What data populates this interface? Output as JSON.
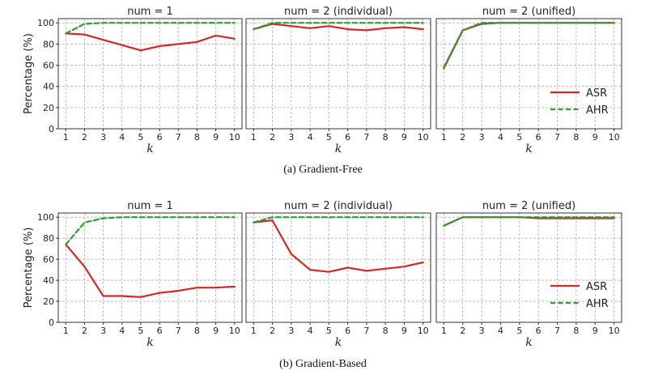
{
  "colors": {
    "asr": "#d62728",
    "ahr": "#2ca02c",
    "grid": "#b0b0b0",
    "frame": "#333333"
  },
  "legend": {
    "placement": "lower-right",
    "in_panel": 2
  },
  "chart_data": [
    {
      "caption": "(a) Gradient-Free",
      "type": "line",
      "ylabel": "Percentage (%)",
      "panels": [
        {
          "title": "num = 1",
          "xlabel": "k",
          "x": [
            1,
            2,
            3,
            4,
            5,
            6,
            7,
            8,
            9,
            10
          ],
          "series": [
            {
              "name": "ASR",
              "style": "solid",
              "values": [
                90,
                89,
                84,
                79,
                74,
                78,
                80,
                82,
                88,
                85
              ]
            },
            {
              "name": "AHR",
              "style": "dashed",
              "values": [
                90,
                99,
                100,
                100,
                100,
                100,
                100,
                100,
                100,
                100
              ]
            }
          ]
        },
        {
          "title": "num = 2 (individual)",
          "xlabel": "k",
          "x": [
            1,
            2,
            3,
            4,
            5,
            6,
            7,
            8,
            9,
            10
          ],
          "series": [
            {
              "name": "ASR",
              "style": "solid",
              "values": [
                94,
                99,
                97,
                95,
                97,
                94,
                93,
                95,
                96,
                94
              ]
            },
            {
              "name": "AHR",
              "style": "dashed",
              "values": [
                94,
                100,
                100,
                100,
                100,
                100,
                100,
                100,
                100,
                100
              ]
            }
          ]
        },
        {
          "title": "num = 2 (unified)",
          "xlabel": "k",
          "x": [
            1,
            2,
            3,
            4,
            5,
            6,
            7,
            8,
            9,
            10
          ],
          "series": [
            {
              "name": "ASR",
              "style": "solid",
              "values": [
                57,
                93,
                99,
                100,
                100,
                100,
                100,
                100,
                100,
                100
              ]
            },
            {
              "name": "AHR",
              "style": "dashed",
              "values": [
                58,
                93,
                100,
                100,
                100,
                100,
                100,
                100,
                100,
                100
              ]
            }
          ]
        }
      ],
      "ylim": [
        0,
        104
      ],
      "yticks": [
        0,
        20,
        40,
        60,
        80,
        100
      ],
      "grid": true
    },
    {
      "caption": "(b) Gradient-Based",
      "type": "line",
      "ylabel": "Percentage (%)",
      "panels": [
        {
          "title": "num = 1",
          "xlabel": "k",
          "x": [
            1,
            2,
            3,
            4,
            5,
            6,
            7,
            8,
            9,
            10
          ],
          "series": [
            {
              "name": "ASR",
              "style": "solid",
              "values": [
                74,
                53,
                25,
                25,
                24,
                28,
                30,
                33,
                33,
                34
              ]
            },
            {
              "name": "AHR",
              "style": "dashed",
              "values": [
                74,
                95,
                99,
                100,
                100,
                100,
                100,
                100,
                100,
                100
              ]
            }
          ]
        },
        {
          "title": "num = 2 (individual)",
          "xlabel": "k",
          "x": [
            1,
            2,
            3,
            4,
            5,
            6,
            7,
            8,
            9,
            10
          ],
          "series": [
            {
              "name": "ASR",
              "style": "solid",
              "values": [
                95,
                97,
                65,
                50,
                48,
                52,
                49,
                51,
                53,
                57
              ]
            },
            {
              "name": "AHR",
              "style": "dashed",
              "values": [
                95,
                100,
                100,
                100,
                100,
                100,
                100,
                100,
                100,
                100
              ]
            }
          ]
        },
        {
          "title": "num = 2 (unified)",
          "xlabel": "k",
          "x": [
            1,
            2,
            3,
            4,
            5,
            6,
            7,
            8,
            9,
            10
          ],
          "series": [
            {
              "name": "ASR",
              "style": "solid",
              "values": [
                92,
                100,
                100,
                100,
                100,
                99,
                99,
                99,
                99,
                99
              ]
            },
            {
              "name": "AHR",
              "style": "dashed",
              "values": [
                92,
                100,
                100,
                100,
                100,
                100,
                100,
                100,
                100,
                100
              ]
            }
          ]
        }
      ],
      "ylim": [
        0,
        104
      ],
      "yticks": [
        0,
        20,
        40,
        60,
        80,
        100
      ],
      "grid": true
    }
  ]
}
